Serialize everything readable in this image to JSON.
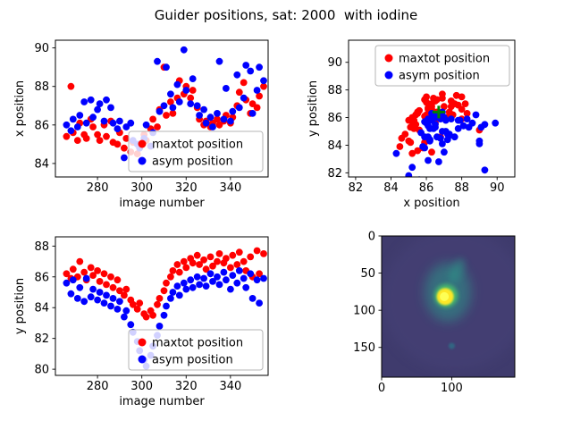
{
  "title": "Guider positions, sat: 2000  with iodine",
  "colors": {
    "maxtot": "#ff0000",
    "asym": "#0000ff",
    "marker_green": "#008000",
    "axis": "#000000",
    "legend_border": "#b5b5b5"
  },
  "legend_labels": [
    "maxtot position",
    "asym position"
  ],
  "measurements": {
    "image_number": [
      266,
      268,
      269,
      271,
      272,
      274,
      275,
      277,
      278,
      280,
      281,
      283,
      284,
      286,
      287,
      289,
      290,
      292,
      293,
      295,
      296,
      298,
      299,
      301,
      302,
      304,
      305,
      307,
      308,
      310,
      311,
      313,
      314,
      316,
      317,
      319,
      320,
      322,
      323,
      325,
      326,
      328,
      329,
      331,
      332,
      334,
      335,
      337,
      338,
      340,
      341,
      343,
      344,
      346,
      347,
      349,
      350,
      352,
      353,
      355
    ],
    "x_maxtot": [
      85.4,
      88.0,
      85.6,
      85.2,
      86.1,
      85.5,
      85.3,
      86.3,
      85.9,
      85.5,
      85.2,
      86.0,
      85.4,
      86.2,
      85.1,
      85.0,
      85.6,
      84.8,
      85.3,
      84.6,
      85.1,
      84.5,
      85.0,
      85.5,
      85.2,
      85.8,
      86.3,
      85.9,
      86.8,
      89.0,
      86.5,
      87.2,
      86.6,
      87.4,
      88.3,
      87.6,
      88.0,
      87.4,
      87.8,
      86.9,
      86.3,
      86.0,
      86.2,
      85.9,
      86.1,
      86.3,
      86.0,
      86.2,
      86.5,
      86.1,
      86.4,
      87.0,
      87.7,
      88.2,
      87.3,
      86.6,
      87.1,
      86.9,
      87.5,
      88.0
    ],
    "x_asym": [
      86.0,
      85.7,
      86.3,
      85.9,
      86.5,
      87.2,
      86.1,
      87.3,
      86.4,
      86.8,
      87.1,
      86.2,
      87.3,
      86.9,
      86.1,
      85.8,
      86.2,
      84.3,
      85.9,
      86.1,
      85.2,
      85.0,
      84.8,
      85.3,
      86.0,
      84.9,
      85.6,
      89.3,
      86.7,
      87.0,
      89.0,
      87.6,
      86.9,
      88.1,
      87.2,
      89.9,
      87.8,
      87.1,
      88.4,
      87.0,
      86.5,
      86.8,
      86.1,
      86.4,
      85.9,
      86.6,
      89.3,
      86.3,
      87.9,
      86.2,
      86.7,
      88.6,
      86.9,
      87.4,
      89.1,
      88.8,
      86.6,
      87.8,
      89.0,
      88.3
    ],
    "y_maxtot": [
      86.2,
      85.9,
      86.5,
      86.0,
      87.0,
      86.3,
      85.8,
      86.6,
      86.1,
      86.4,
      85.7,
      86.2,
      85.5,
      86.0,
      85.3,
      85.8,
      85.1,
      84.8,
      85.2,
      84.5,
      84.2,
      83.9,
      84.3,
      83.6,
      83.4,
      83.8,
      83.5,
      84.2,
      84.6,
      85.1,
      85.6,
      86.0,
      86.4,
      86.8,
      86.3,
      87.0,
      86.6,
      87.2,
      86.9,
      87.4,
      86.8,
      87.1,
      86.5,
      87.3,
      86.7,
      87.0,
      87.5,
      86.9,
      87.2,
      86.6,
      87.4,
      86.8,
      87.6,
      87.0,
      86.4,
      87.3,
      86.0,
      87.7,
      86.2,
      87.5
    ],
    "y_asym": [
      85.6,
      84.9,
      85.8,
      84.6,
      85.3,
      84.4,
      85.9,
      84.7,
      85.2,
      84.5,
      85.0,
      84.3,
      84.8,
      84.1,
      84.6,
      83.9,
      84.4,
      83.4,
      83.8,
      82.9,
      82.4,
      81.8,
      81.2,
      80.6,
      80.2,
      80.9,
      81.5,
      82.2,
      82.8,
      83.5,
      84.1,
      84.6,
      85.0,
      85.4,
      84.8,
      85.6,
      85.2,
      85.8,
      85.3,
      86.0,
      85.5,
      85.9,
      85.4,
      86.2,
      85.7,
      86.0,
      85.5,
      86.3,
      85.8,
      85.2,
      86.1,
      85.6,
      86.4,
      85.9,
      85.3,
      86.2,
      84.6,
      85.8,
      84.3,
      85.9
    ]
  },
  "chart_data": [
    {
      "id": "x-position-vs-image-number",
      "type": "scatter",
      "xlabel": "image number",
      "ylabel": "x position",
      "xlim": [
        261,
        357
      ],
      "ylim": [
        83.3,
        90.4
      ],
      "xticks": [
        280,
        300,
        320,
        340
      ],
      "yticks": [
        84,
        86,
        88,
        90
      ],
      "legend": "lower right",
      "series": [
        {
          "name": "maxtot position",
          "color": "#ff0000",
          "x": "image_number",
          "y": "x_maxtot"
        },
        {
          "name": "asym position",
          "color": "#0000ff",
          "x": "image_number",
          "y": "x_asym"
        }
      ]
    },
    {
      "id": "y-position-vs-x-position",
      "type": "scatter",
      "xlabel": "x position",
      "ylabel": "y position",
      "xlim": [
        81.6,
        91.0
      ],
      "ylim": [
        81.7,
        91.6
      ],
      "xticks": [
        82,
        84,
        86,
        88,
        90
      ],
      "yticks": [
        82,
        84,
        86,
        88,
        90
      ],
      "legend": "upper right",
      "series": [
        {
          "name": "maxtot position",
          "color": "#ff0000",
          "x": "x_maxtot",
          "y": "y_maxtot"
        },
        {
          "name": "asym position",
          "color": "#0000ff",
          "x": "x_asym",
          "y": "y_asym"
        }
      ],
      "marker": {
        "type": "plus",
        "x": 86.7,
        "y": 86.4,
        "color": "#008000"
      }
    },
    {
      "id": "y-position-vs-image-number",
      "type": "scatter",
      "xlabel": "image number",
      "ylabel": "y position",
      "xlim": [
        261,
        357
      ],
      "ylim": [
        79.6,
        88.6
      ],
      "xticks": [
        280,
        300,
        320,
        340
      ],
      "yticks": [
        80,
        82,
        84,
        86,
        88
      ],
      "legend": "lower right",
      "series": [
        {
          "name": "maxtot position",
          "color": "#ff0000",
          "x": "image_number",
          "y": "y_maxtot"
        },
        {
          "name": "asym position",
          "color": "#0000ff",
          "x": "image_number",
          "y": "y_asym"
        }
      ]
    },
    {
      "id": "guider-camera-image",
      "type": "image",
      "xlim": [
        0,
        190
      ],
      "ylim": [
        0,
        190
      ],
      "y_inverted": true,
      "xticks": [
        0,
        100
      ],
      "yticks": [
        0,
        50,
        100,
        150
      ],
      "colormap": "viridis",
      "background": "#3f3b6d",
      "blob": {
        "x": 92,
        "y": 78,
        "core_color": "#fde725",
        "ring_color": "#4ac16d",
        "glow_color": "#2a9d8a"
      },
      "secondary_spot": {
        "x": 100,
        "y": 148,
        "color": "#27808e"
      }
    }
  ]
}
